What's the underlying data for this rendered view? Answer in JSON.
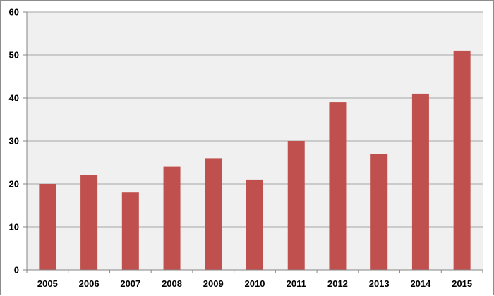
{
  "chart_data": {
    "type": "bar",
    "title": "",
    "xlabel": "",
    "ylabel": "",
    "categories": [
      "2005",
      "2006",
      "2007",
      "2008",
      "2009",
      "2010",
      "2011",
      "2012",
      "2013",
      "2014",
      "2015"
    ],
    "series": [
      {
        "values": [
          20,
          22,
          18,
          24,
          26,
          21,
          30,
          39,
          27,
          41,
          51
        ],
        "color": "#c0504d"
      }
    ],
    "ylim": [
      0,
      60
    ],
    "yticks": [
      "0",
      "10",
      "20",
      "30",
      "40",
      "50",
      "60"
    ],
    "grid": true,
    "legend": "none",
    "colors": {
      "plot_background": "#f0f0f0",
      "gridline": "#a6a6a6",
      "axis": "#868686"
    }
  }
}
